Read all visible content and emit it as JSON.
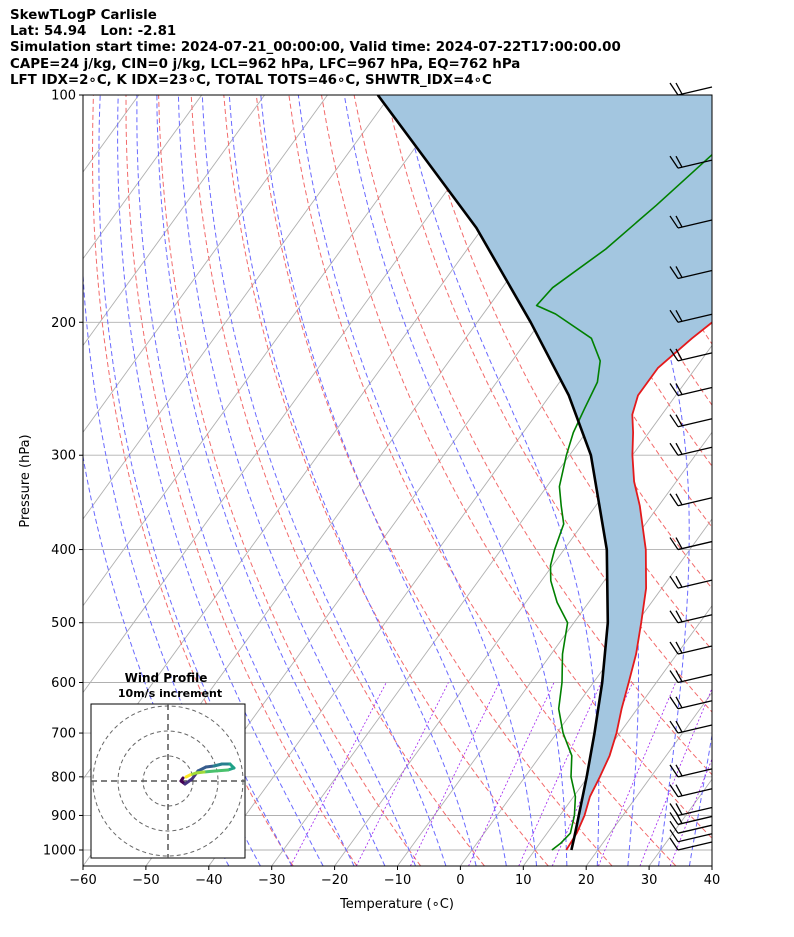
{
  "header": {
    "title_lines": [
      "SkewTLogP Carlisle",
      "Lat: 54.94   Lon: -2.81",
      "Simulation start time: 2024-07-21_00:00:00, Valid time: 2024-07-22T17:00:00.00",
      "CAPE=24 j/kg, CIN=0 j/kg, LCL=962 hPa, LFC=967 hPa, EQ=762 hPa",
      "LFT IDX=2∘C, K IDX=23∘C, TOTAL TOTS=46∘C, SHWTR_IDX=4∘C"
    ]
  },
  "chart_data": {
    "type": "line",
    "subtype": "skew-t log-p",
    "xlabel": "Temperature (∘C)",
    "ylabel": "Pressure (hPa)",
    "xlim": [
      -60,
      40
    ],
    "ylim": [
      1050,
      100
    ],
    "y_scale": "log",
    "x_ticks": [
      -60,
      -50,
      -40,
      -30,
      -20,
      -10,
      0,
      10,
      20,
      30,
      40
    ],
    "x_tick_labels": [
      "−60",
      "−50",
      "−40",
      "−30",
      "−20",
      "−10",
      "0",
      "10",
      "20",
      "30",
      "40"
    ],
    "y_ticks": [
      1000,
      900,
      800,
      700,
      600,
      500,
      400,
      300,
      200,
      100
    ],
    "y_tick_labels": [
      "1000",
      "900",
      "800",
      "700",
      "600",
      "500",
      "400",
      "300",
      "200",
      "100"
    ],
    "grid": true,
    "cape_shading_color": "#a3c6e0",
    "series": [
      {
        "color": "#e31a1c",
        "points": [
          [
            1000,
            15.0
          ],
          [
            950,
            14.7
          ],
          [
            900,
            13.9
          ],
          [
            850,
            12.6
          ],
          [
            800,
            11.9
          ],
          [
            750,
            11.0
          ],
          [
            700,
            9.5
          ],
          [
            650,
            7.5
          ],
          [
            600,
            5.6
          ],
          [
            550,
            3.5
          ],
          [
            500,
            0.7
          ],
          [
            450,
            -2.5
          ],
          [
            400,
            -7.0
          ],
          [
            350,
            -13.0
          ],
          [
            325,
            -16.7
          ],
          [
            300,
            -20.0
          ],
          [
            280,
            -22.5
          ],
          [
            265,
            -24.7
          ],
          [
            250,
            -26.0
          ],
          [
            230,
            -26.0
          ],
          [
            210,
            -24.0
          ],
          [
            190,
            -21.2
          ],
          [
            170,
            -18.2
          ],
          [
            150,
            -15.8
          ],
          [
            130,
            -13.8
          ],
          [
            115,
            -12.8
          ],
          [
            100,
            -11.0
          ]
        ]
      },
      {
        "color": "#008000",
        "points": [
          [
            1000,
            12.7
          ],
          [
            980,
            13.3
          ],
          [
            950,
            13.7
          ],
          [
            900,
            12.3
          ],
          [
            850,
            10.3
          ],
          [
            800,
            7.3
          ],
          [
            750,
            5.0
          ],
          [
            700,
            1.0
          ],
          [
            650,
            -2.5
          ],
          [
            600,
            -5.0
          ],
          [
            550,
            -8.2
          ],
          [
            500,
            -11.0
          ],
          [
            470,
            -15.0
          ],
          [
            440,
            -18.5
          ],
          [
            420,
            -20.3
          ],
          [
            400,
            -21.5
          ],
          [
            370,
            -23.0
          ],
          [
            350,
            -25.5
          ],
          [
            330,
            -28.0
          ],
          [
            300,
            -30.5
          ],
          [
            280,
            -32.0
          ],
          [
            260,
            -33.0
          ],
          [
            240,
            -34.0
          ],
          [
            225,
            -36.0
          ],
          [
            210,
            -40.0
          ],
          [
            195,
            -48.5
          ],
          [
            190,
            -52.5
          ],
          [
            180,
            -52.0
          ],
          [
            160,
            -48.0
          ],
          [
            140,
            -45.0
          ],
          [
            120,
            -42.0
          ],
          [
            100,
            -39.5
          ]
        ]
      },
      {
        "color": "#000000",
        "points": [
          [
            1000,
            15.8
          ],
          [
            962,
            14.8
          ],
          [
            900,
            13.0
          ],
          [
            800,
            9.8
          ],
          [
            700,
            6.0
          ],
          [
            600,
            1.4
          ],
          [
            500,
            -4.6
          ],
          [
            400,
            -13.2
          ],
          [
            300,
            -26.6
          ],
          [
            250,
            -37.0
          ],
          [
            200,
            -51.5
          ],
          [
            150,
            -71.0
          ],
          [
            100,
            -102.0
          ]
        ]
      }
    ],
    "wind_barbs": {
      "pressures": [
        1000,
        975,
        950,
        925,
        900,
        850,
        800,
        700,
        650,
        600,
        550,
        500,
        450,
        400,
        350,
        300,
        275,
        250,
        225,
        200,
        175,
        150,
        125,
        100
      ]
    },
    "inset": {
      "title": "Wind Profile",
      "subtitle": "10m/s increment"
    }
  }
}
